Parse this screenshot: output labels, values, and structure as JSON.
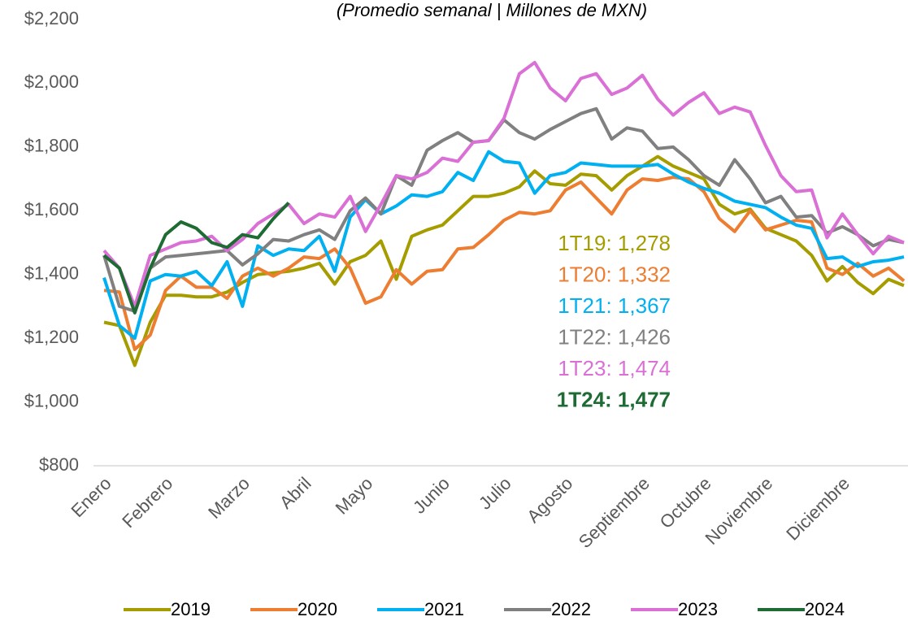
{
  "chart_data": {
    "type": "line",
    "subtitle": "(Promedio semanal | Millones de MXN)",
    "categories": [
      "Enero",
      null,
      null,
      null,
      "Febrero",
      null,
      null,
      null,
      null,
      "Marzo",
      null,
      null,
      null,
      "Abril",
      null,
      null,
      null,
      "Mayo",
      null,
      null,
      null,
      null,
      "Junio",
      null,
      null,
      null,
      "Julio",
      null,
      null,
      null,
      "Agosto",
      null,
      null,
      null,
      null,
      "Septiembre",
      null,
      null,
      null,
      "Octubre",
      null,
      null,
      null,
      "Noviembre",
      null,
      null,
      null,
      null,
      "Diciembre",
      null,
      null,
      null,
      null
    ],
    "series": [
      {
        "name": "2019",
        "color": "#a59d00",
        "values": [
          1250,
          1240,
          1115,
          1250,
          1335,
          1335,
          1330,
          1330,
          1345,
          1375,
          1400,
          1405,
          1410,
          1420,
          1435,
          1370,
          1440,
          1460,
          1505,
          1385,
          1520,
          1540,
          1555,
          1600,
          1645,
          1645,
          1655,
          1675,
          1725,
          1685,
          1680,
          1715,
          1710,
          1665,
          1710,
          1740,
          1770,
          1740,
          1720,
          1700,
          1620,
          1590,
          1605,
          1545,
          1525,
          1505,
          1460,
          1380,
          1425,
          1375,
          1340,
          1385,
          1365
        ]
      },
      {
        "name": "2020",
        "color": "#ed7d31",
        "values": [
          1350,
          1345,
          1165,
          1210,
          1350,
          1395,
          1360,
          1360,
          1325,
          1395,
          1420,
          1395,
          1420,
          1455,
          1450,
          1480,
          1420,
          1310,
          1330,
          1415,
          1370,
          1410,
          1415,
          1480,
          1485,
          1525,
          1570,
          1595,
          1590,
          1600,
          1665,
          1690,
          1640,
          1590,
          1665,
          1700,
          1695,
          1705,
          1700,
          1660,
          1575,
          1535,
          1600,
          1540,
          1555,
          1570,
          1565,
          1420,
          1400,
          1435,
          1395,
          1420,
          1380
        ]
      },
      {
        "name": "2021",
        "color": "#00b0f0",
        "values": [
          1390,
          1240,
          1200,
          1380,
          1400,
          1395,
          1410,
          1365,
          1440,
          1300,
          1490,
          1460,
          1480,
          1475,
          1520,
          1410,
          1580,
          1635,
          1590,
          1615,
          1650,
          1645,
          1660,
          1720,
          1695,
          1785,
          1755,
          1750,
          1655,
          1710,
          1720,
          1750,
          1745,
          1740,
          1740,
          1740,
          1745,
          1715,
          1690,
          1670,
          1655,
          1630,
          1620,
          1610,
          1580,
          1555,
          1545,
          1450,
          1455,
          1425,
          1440,
          1445,
          1455
        ]
      },
      {
        "name": "2022",
        "color": "#808080",
        "values": [
          1460,
          1300,
          1285,
          1420,
          1455,
          1460,
          1465,
          1470,
          1475,
          1430,
          1465,
          1510,
          1505,
          1525,
          1540,
          1510,
          1600,
          1640,
          1590,
          1710,
          1680,
          1790,
          1820,
          1845,
          1815,
          1820,
          1885,
          1845,
          1825,
          1855,
          1880,
          1905,
          1920,
          1825,
          1860,
          1850,
          1795,
          1800,
          1760,
          1710,
          1680,
          1760,
          1700,
          1625,
          1645,
          1580,
          1585,
          1530,
          1550,
          1525,
          1490,
          1510,
          1500
        ]
      },
      {
        "name": "2023",
        "color": "#da70d6",
        "values": [
          1475,
          1420,
          1300,
          1460,
          1480,
          1500,
          1505,
          1520,
          1475,
          1510,
          1560,
          1590,
          1620,
          1560,
          1590,
          1580,
          1645,
          1535,
          1620,
          1710,
          1700,
          1720,
          1765,
          1755,
          1815,
          1820,
          1890,
          2030,
          2065,
          1985,
          1945,
          2015,
          2030,
          1965,
          1985,
          2025,
          1950,
          1900,
          1940,
          1970,
          1905,
          1925,
          1910,
          1805,
          1710,
          1660,
          1665,
          1515,
          1590,
          1525,
          1465,
          1520,
          1500
        ]
      },
      {
        "name": "2024",
        "color": "#1e6b34",
        "values": [
          1460,
          1420,
          1280,
          1420,
          1525,
          1565,
          1545,
          1500,
          1485,
          1525,
          1515,
          1575,
          1625,
          null,
          null,
          null,
          null,
          null,
          null,
          null,
          null,
          null,
          null,
          null,
          null,
          null,
          null,
          null,
          null,
          null,
          null,
          null,
          null,
          null,
          null,
          null,
          null,
          null,
          null,
          null,
          null,
          null,
          null,
          null,
          null,
          null,
          null,
          null,
          null,
          null,
          null,
          null,
          null
        ]
      }
    ],
    "annotations": [
      {
        "text": "1T19: 1,278",
        "color": "#a59d00"
      },
      {
        "text": "1T20: 1,332",
        "color": "#ed7d31"
      },
      {
        "text": "1T21: 1,367",
        "color": "#00b0f0"
      },
      {
        "text": "1T22: 1,426",
        "color": "#808080"
      },
      {
        "text": "1T23: 1,474",
        "color": "#da70d6"
      },
      {
        "text": "1T24: 1,477",
        "color": "#1e6b34",
        "bold": true
      }
    ],
    "ylim": [
      800,
      2200
    ],
    "yticks": [
      {
        "value": 800,
        "label": "$800"
      },
      {
        "value": 1000,
        "label": "$1,000"
      },
      {
        "value": 1200,
        "label": "$1,200"
      },
      {
        "value": 1400,
        "label": "$1,400"
      },
      {
        "value": 1600,
        "label": "$1,600"
      },
      {
        "value": 1800,
        "label": "$1,800"
      },
      {
        "value": 2000,
        "label": "$2,000"
      },
      {
        "value": 2200,
        "label": "$2,200"
      }
    ],
    "legend": "bottom"
  }
}
